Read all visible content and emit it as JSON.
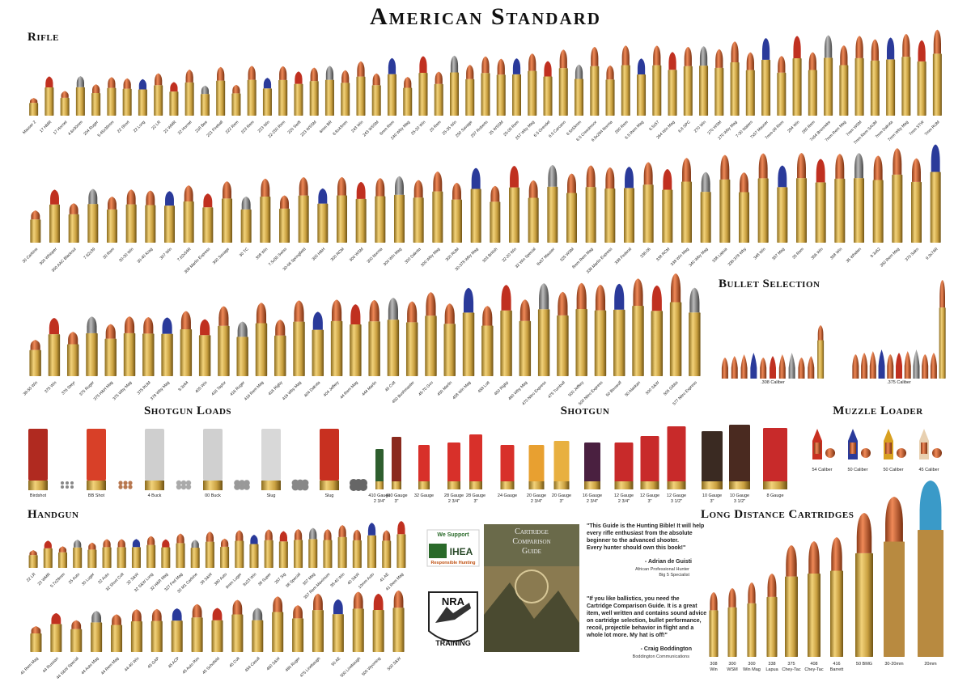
{
  "header": {
    "title": "American Standard"
  },
  "rifle": {
    "heading": "Rifle",
    "rows": [
      [
        "Mauser 2",
        "17 HMR",
        "17 Hornet",
        "4.6x30mm",
        "204 Ruger",
        "5.45x39mm",
        "22 Short",
        "22 Long",
        "22 LR",
        "22 WMR",
        "22 Hornet",
        "218 Bee",
        "221 Fireball",
        "222 Rem",
        "223 Rem",
        "223 Win",
        "22-250 Rem",
        "220 Swift",
        "223 WSSM",
        "6mm BR",
        "6.8x43mm",
        "243 Win",
        "243 WSSM",
        "6mm Rem",
        "240 Wby Mag",
        "25-20 Win",
        "25 Rem",
        "25-35 Win",
        "250 Savage",
        "257 Roberts",
        "25 WSSM",
        "25-06 Rem",
        "257 Wby Mag",
        "6.5 Grendel",
        "6.5 Carcano",
        "6.5x55mm",
        "6.5 Creedmoor",
        "6.5x284 Norma",
        "260 Rem",
        "6.5 Rem Mag",
        "6.5x57",
        "264 Win Mag",
        "6.8 SPC",
        "270 Win",
        "270 WSM",
        "270 Wby Mag",
        "7-30 Waters",
        "7x57 Mauser",
        "7mm-08 Rem",
        "284 Win",
        "280 Rem",
        "7x64 Brenneke",
        "7mm Rem Mag",
        "7mm WSM",
        "7mm Rem SAUM",
        "7mm Dakota",
        "7mm Wby Mag",
        "7mm STW",
        "7mm RUM"
      ],
      [
        "30 Carbine",
        "300 Whisper",
        "300 AAC Blackout",
        "7.62x39",
        "30 Rem",
        "30-30 Win",
        "30-40 Krag",
        "307 Win",
        "7.62x54R",
        "308 Marlin Express",
        "300 Savage",
        "30 TC",
        "308 Win",
        "7.5x55 Swiss",
        "30-06 Springfield",
        "300 H&H",
        "300 RCM",
        "300 WSM",
        "300 Norma",
        "300 Win Mag",
        "300 Dakota",
        "300 Wby Mag",
        "300 RUM",
        "30-378 Wby Mag",
        "303 British",
        "32-20 Win",
        "32 Win Special",
        "8x57 Mauser",
        "325 WSM",
        "8mm Rem Mag",
        "338 Marlin Express",
        "338 Federal",
        "338-06",
        "338 RCM",
        "338 Win Mag",
        "340 Wby Mag",
        "338 Lapua",
        "338-378 Wby",
        "348 Win",
        "357 Mag",
        "35 Rem",
        "356 Win",
        "358 Win",
        "35 Whelen",
        "9.3x62",
        "350 Rem Mag",
        "370 Sako",
        "9.3x74R"
      ],
      [
        "38-55 Win",
        "375 Win",
        "376 Steyr",
        "375 Ruger",
        "375 H&H Mag",
        "375 Wby Mag",
        "375 RUM",
        "378 Wby Mag",
        "9.3x64",
        "405 Win",
        "416 Taylor",
        "416 Ruger",
        "416 Rem Mag",
        "416 Rigby",
        "416 Wby Mag",
        "404 Dakota",
        "404 Jeffery",
        "44 Rem Mag",
        "444 Marlin",
        "45 Colt",
        "450 Bushmaster",
        "45-70 Gov",
        "450 Marlin",
        "458 Win Mag",
        "458 Lott",
        "450 Rigby",
        "460 Wby Mag",
        "470 Nitro Express",
        "475 Turnbull",
        "500 Jeffery",
        "500 Nitro Express",
        "50 Beowulf",
        "50 Alaskan",
        "500 S&W",
        "505 Gibbs",
        "577 Nitro Express"
      ]
    ]
  },
  "bullet_selection": {
    "heading": "Bullet Selection",
    "groups": [
      ".308 Caliber",
      ".375 Caliber"
    ]
  },
  "shotgun_loads": {
    "heading": "Shotgun Loads",
    "items": [
      "Birdshot",
      "BB Shot",
      "4 Buck",
      "00 Buck",
      "Slug",
      "Slug"
    ]
  },
  "shotgun": {
    "heading": "Shotgun",
    "items": [
      [
        "410 Gauge",
        "2 3/4\""
      ],
      [
        "410 Gauge",
        "3\""
      ],
      [
        "32 Gauge"
      ],
      [
        "28 Gauge",
        "2 3/4\""
      ],
      [
        "28 Gauge",
        "3\""
      ],
      [
        "24 Gauge"
      ],
      [
        "20 Gauge",
        "2 3/4\""
      ],
      [
        "20 Gauge",
        "3\""
      ],
      [
        "16 Gauge",
        "2 3/4\""
      ],
      [
        "12 Gauge",
        "2 3/4\""
      ],
      [
        "12 Gauge",
        "3\""
      ],
      [
        "12 Gauge",
        "3 1/2\""
      ],
      [
        "10 Gauge",
        "3\""
      ],
      [
        "10 Gauge",
        "3 1/2\""
      ],
      [
        "8 Gauge"
      ]
    ]
  },
  "muzzle_loader": {
    "heading": "Muzzle Loader",
    "items": [
      "54 Caliber",
      "50 Caliber",
      "50 Caliber",
      "45 Caliber"
    ]
  },
  "handgun": {
    "heading": "Handgun",
    "rows": [
      [
        "22 LR",
        "22 WMR",
        "5.7x28mm",
        "25 Auto",
        "30 Luger",
        "32 Auto",
        "32 Short Colt",
        "32 S&W",
        "32 S&W Long",
        "32 H&R Mag",
        "327 Fed Mag",
        "30 M1 Carbine",
        "38 S&W",
        "380 Auto",
        "9mm Luger",
        "9x23 Win",
        "38 Super",
        "357 Sig",
        "38 Special",
        "357 Mag",
        "357 Rem Maximum",
        "38-40 Win",
        "40 S&W",
        "10mm Auto",
        "41 AE",
        "41 Rem Mag"
      ],
      [
        "41 Rem Mag",
        "44 Russian",
        "44 S&W Special",
        "44 Auto Mag",
        "44 Rem Mag",
        "44-40 Win",
        "45 GAP",
        "45 ACP",
        "45 Auto Rim",
        "45 Schofield",
        "45 Colt",
        "454 Casull",
        "460 S&W",
        "480 Ruger",
        "475 Linebaugh",
        "50 AE",
        "500 Linebaugh",
        "500 Wyoming",
        "500 S&W"
      ]
    ]
  },
  "promo": {
    "ihea": [
      "We Support",
      "IHEA",
      "Responsible Hunting"
    ],
    "nra": [
      "NRA",
      "TRAINING"
    ],
    "book": [
      "Cartridge",
      "Comparison",
      "Guide"
    ],
    "quotes": [
      {
        "lines": [
          "\"This Guide is the Hunting Bible! It will help",
          "every rifle enthusiast from the absolute",
          "beginner to the advanced shooter.",
          "Every hunter should own this book!\""
        ],
        "author": "- Adrian de Guisti",
        "affiliation": [
          "African Professional Hunter",
          "Big 5 Specialist"
        ]
      },
      {
        "lines": [
          "\"If you like ballistics, you need the",
          "Cartridge Comparison Guide. It is a great",
          "item, well written and contains sound advice",
          "on cartridge selection, bullet performance,",
          "recoil, projectile behavior in flight and a",
          "whole lot more. My hat is off!\""
        ],
        "author": "- Craig Boddington",
        "affiliation": [
          "Boddington Communications"
        ]
      }
    ]
  },
  "long_distance": {
    "heading": "Long Distance Cartridges",
    "items": [
      [
        "308",
        "Win"
      ],
      [
        "300",
        "WSM"
      ],
      [
        "300",
        "Win Mag"
      ],
      [
        "338",
        "Lapua"
      ],
      [
        "375",
        "Chey-Tac"
      ],
      [
        "408",
        "Chey-Tac"
      ],
      [
        "416",
        "Barrett"
      ],
      [
        "50 BMG"
      ],
      [
        "30-20mm"
      ],
      [
        "20mm"
      ]
    ]
  }
}
